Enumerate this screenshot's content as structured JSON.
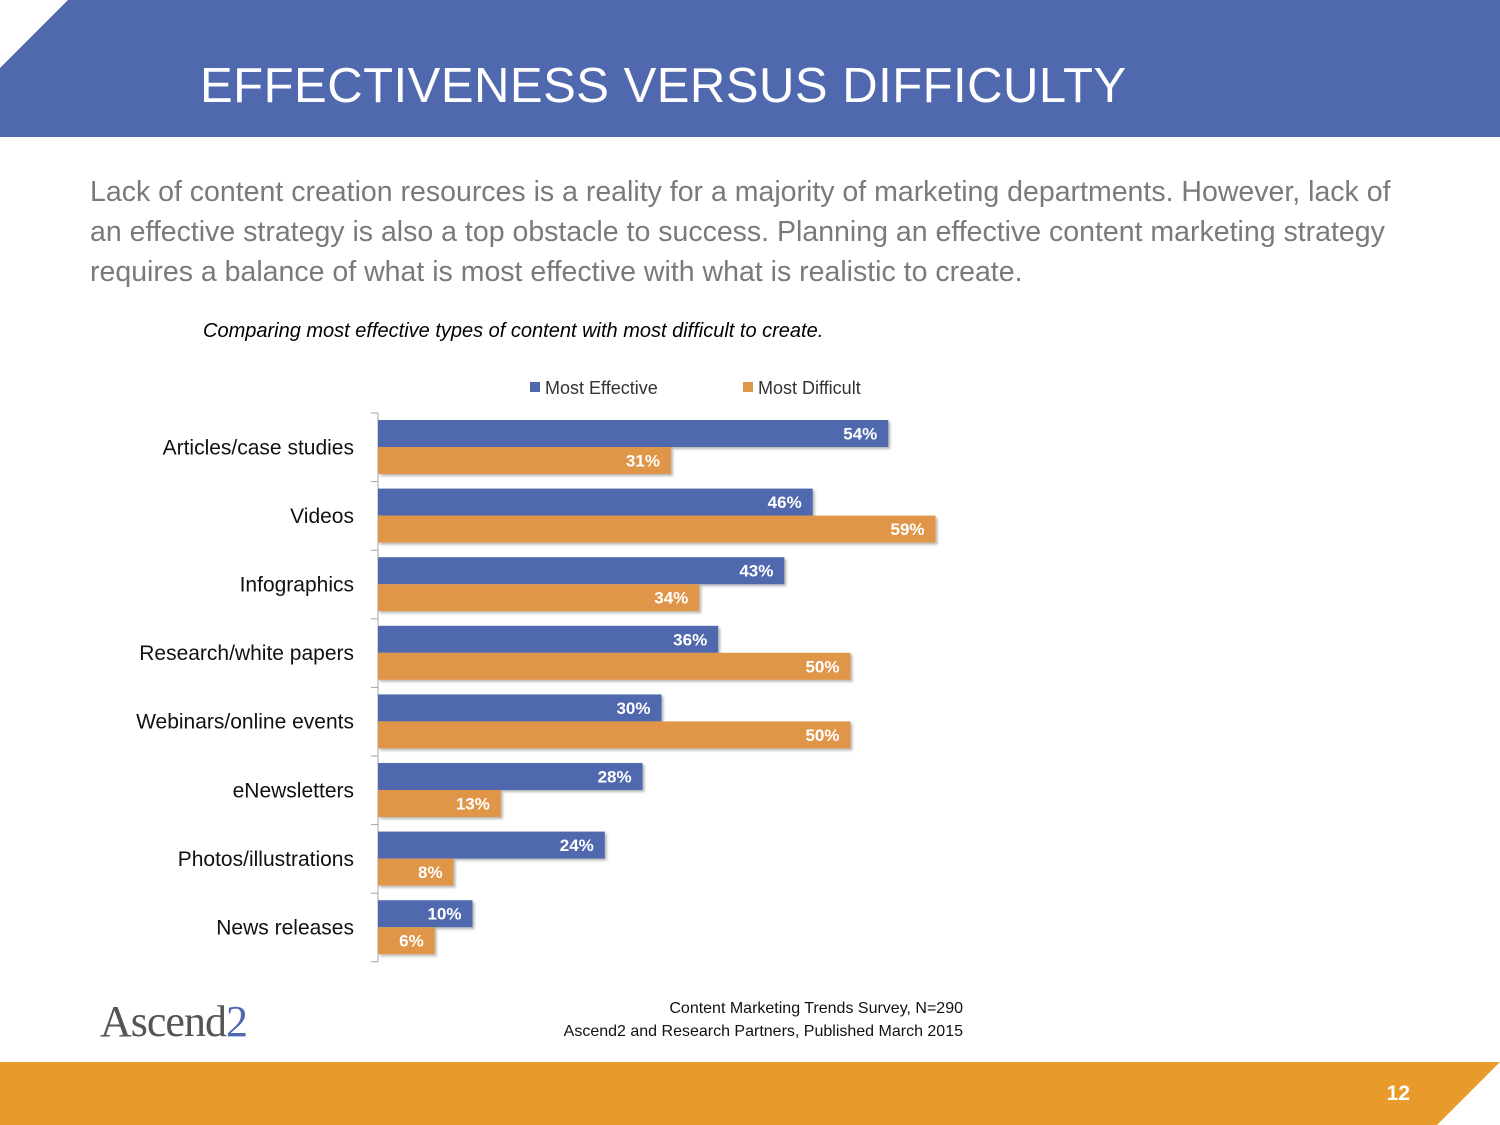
{
  "slide": {
    "title": "EFFECTIVENESS VERSUS DIFFICULTY",
    "intro": "Lack of content creation resources is a reality for a majority of marketing departments. However, lack of an effective strategy is also a top obstacle to success. Planning an effective content marketing strategy requires a balance of what is most effective with what is realistic to create.",
    "chart_caption": "Comparing most effective types of content with most difficult to create.",
    "source_line1": "Content Marketing Trends Survey, N=290",
    "source_line2": "Ascend2 and Research Partners, Published March 2015",
    "logo_text": "Ascend",
    "logo_mark": "2",
    "page_number": "12"
  },
  "colors": {
    "header": "#4f68ae",
    "footer": "#e89b2a",
    "most_effective": "#4f68ae",
    "most_difficult": "#e0964a"
  },
  "chart_data": {
    "type": "bar",
    "orientation": "horizontal",
    "categories": [
      "Articles/case studies",
      "Videos",
      "Infographics",
      "Research/white papers",
      "Webinars/online events",
      "eNewsletters",
      "Photos/illustrations",
      "News releases"
    ],
    "series": [
      {
        "name": "Most Effective",
        "values": [
          54,
          46,
          43,
          36,
          30,
          28,
          24,
          10
        ]
      },
      {
        "name": "Most Difficult",
        "values": [
          31,
          59,
          34,
          50,
          50,
          13,
          8,
          6
        ]
      }
    ],
    "value_suffix": "%",
    "xlim": [
      0,
      100
    ],
    "grid": false,
    "legend": "top",
    "data_labels": true
  }
}
